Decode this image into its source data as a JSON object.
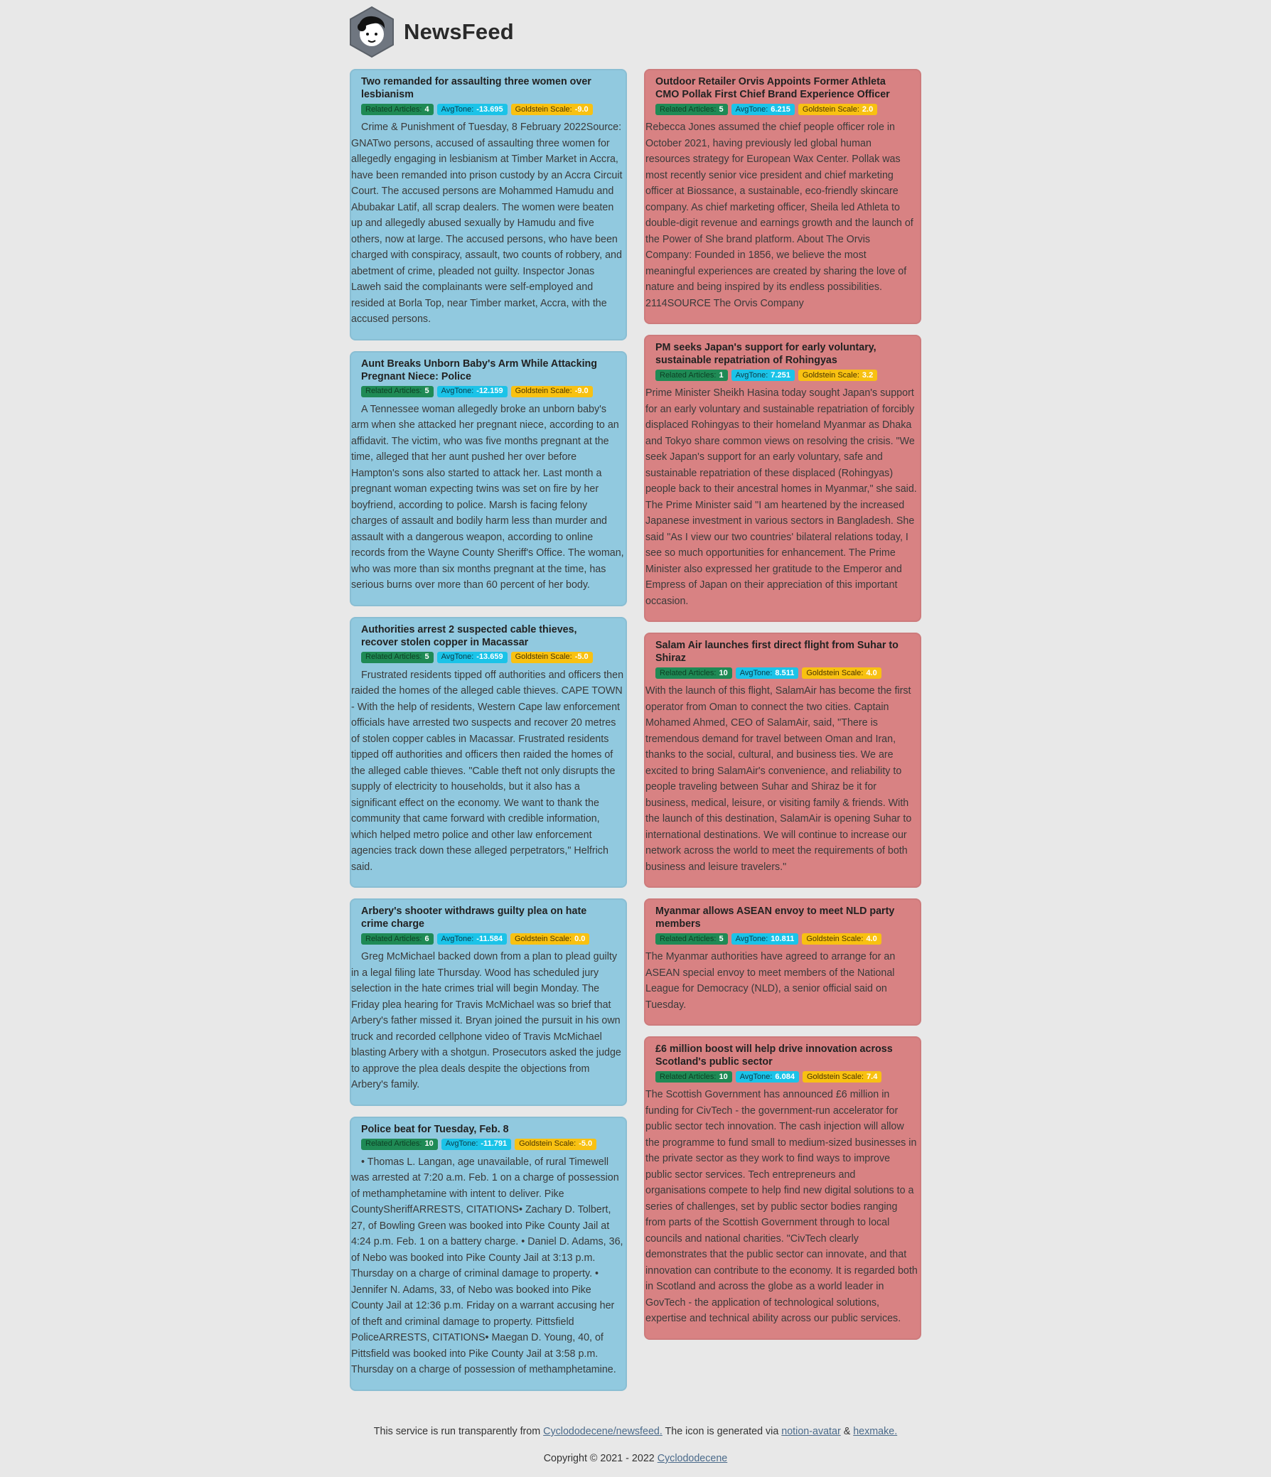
{
  "header": {
    "brand": "NewsFeed",
    "logo_icon": "avatar-hexagon-icon"
  },
  "badge_labels": {
    "related": "Related Articles:",
    "tone": "AvgTone:",
    "goldstein": "Goldstein Scale:"
  },
  "left_cards": [
    {
      "title": "Two remanded for assaulting three women over lesbianism",
      "related": "4",
      "tone": "-13.695",
      "goldstein": "-9.0",
      "body": "Crime & Punishment of Tuesday, 8 February 2022Source: GNATwo persons, accused of assaulting three women for allegedly engaging in lesbianism at Timber Market in Accra, have been remanded into prison custody by an Accra Circuit Court. The accused persons are Mohammed Hamudu and Abubakar Latif, all scrap dealers. The women were beaten up and allegedly abused sexually by Hamudu and five others, now at large. The accused persons, who have been charged with conspiracy, assault, two counts of robbery, and abetment of crime, pleaded not guilty. Inspector Jonas Laweh said the complainants were self-employed and resided at Borla Top, near Timber market, Accra, with the accused persons."
    },
    {
      "title": "Aunt Breaks Unborn Baby's Arm While Attacking Pregnant Niece: Police",
      "related": "5",
      "tone": "-12.159",
      "goldstein": "-9.0",
      "body": "A Tennessee woman allegedly broke an unborn baby's arm when she attacked her pregnant niece, according to an affidavit. The victim, who was five months pregnant at the time, alleged that her aunt pushed her over before Hampton's sons also started to attack her. Last month a pregnant woman expecting twins was set on fire by her boyfriend, according to police. Marsh is facing felony charges of assault and bodily harm less than murder and assault with a dangerous weapon, according to online records from the Wayne County Sheriff's Office. The woman, who was more than six months pregnant at the time, has serious burns over more than 60 percent of her body."
    },
    {
      "title": "Authorities arrest 2 suspected cable thieves, recover stolen copper in Macassar",
      "related": "5",
      "tone": "-13.659",
      "goldstein": "-5.0",
      "body": "Frustrated residents tipped off authorities and officers then raided the homes of the alleged cable thieves. CAPE TOWN - With the help of residents, Western Cape law enforcement officials have arrested two suspects and recover 20 metres of stolen copper cables in Macassar. Frustrated residents tipped off authorities and officers then raided the homes of the alleged cable thieves. \"Cable theft not only disrupts the supply of electricity to households, but it also has a significant effect on the economy. We want to thank the community that came forward with credible information, which helped metro police and other law enforcement agencies track down these alleged perpetrators,\" Helfrich said."
    },
    {
      "title": "Arbery's shooter withdraws guilty plea on hate crime charge",
      "related": "6",
      "tone": "-11.584",
      "goldstein": "0.0",
      "body": "Greg McMichael backed down from a plan to plead guilty in a legal filing late Thursday. Wood has scheduled jury selection in the hate crimes trial will begin Monday. The Friday plea hearing for Travis McMichael was so brief that Arbery's father missed it. Bryan joined the pursuit in his own truck and recorded cellphone video of Travis McMichael blasting Arbery with a shotgun. Prosecutors asked the judge to approve the plea deals despite the objections from Arbery's family."
    },
    {
      "title": "Police beat for Tuesday, Feb. 8",
      "related": "10",
      "tone": "-11.791",
      "goldstein": "-5.0",
      "body": "• Thomas L. Langan, age unavailable, of rural Timewell was arrested at 7:20 a.m. Feb. 1 on a charge of possession of methamphetamine with intent to deliver. Pike CountySheriffARRESTS, CITATIONS• Zachary D. Tolbert, 27, of Bowling Green was booked into Pike County Jail at 4:24 p.m. Feb. 1 on a battery charge. • Daniel D. Adams, 36, of Nebo was booked into Pike County Jail at 3:13 p.m. Thursday on a charge of criminal damage to property. • Jennifer N. Adams, 33, of Nebo was booked into Pike County Jail at 12:36 p.m. Friday on a warrant accusing her of theft and criminal damage to property. Pittsfield PoliceARRESTS, CITATIONS• Maegan D. Young, 40, of Pittsfield was booked into Pike County Jail at 3:58 p.m. Thursday on a charge of possession of methamphetamine."
    }
  ],
  "right_cards": [
    {
      "title": "Outdoor Retailer Orvis Appoints Former Athleta CMO Pollak First Chief Brand Experience Officer",
      "related": "5",
      "tone": "6.215",
      "goldstein": "2.0",
      "body": "Rebecca Jones assumed the chief people officer role in October 2021, having previously led global human resources strategy for European Wax Center. Pollak was most recently senior vice president and chief marketing officer at Biossance, a sustainable, eco-friendly skincare company. As chief marketing officer, Sheila led Athleta to double-digit revenue and earnings growth and the launch of the Power of She brand platform. About The Orvis Company: Founded in 1856, we believe the most meaningful experiences are created by sharing the love of nature and being inspired by its endless possibilities. 2114SOURCE The Orvis Company"
    },
    {
      "title": "PM seeks Japan's support for early voluntary, sustainable repatriation of Rohingyas",
      "related": "1",
      "tone": "7.251",
      "goldstein": "3.2",
      "body": "Prime Minister Sheikh Hasina today sought Japan's support for an early voluntary and sustainable repatriation of forcibly displaced Rohingyas to their homeland Myanmar as Dhaka and Tokyo share common views on resolving the crisis. \"We seek Japan's support for an early voluntary, safe and sustainable repatriation of these displaced (Rohingyas) people back to their ancestral homes in Myanmar,\" she said. The Prime Minister said \"I am heartened by the increased Japanese investment in various sectors in Bangladesh. She said \"As I view our two countries' bilateral relations today, I see so much opportunities for enhancement. The Prime Minister also expressed her gratitude to the Emperor and Empress of Japan on their appreciation of this important occasion."
    },
    {
      "title": "Salam Air launches first direct flight from Suhar to Shiraz",
      "related": "10",
      "tone": "8.511",
      "goldstein": "4.0",
      "body": "With the launch of this flight, SalamAir has become the first operator from Oman to connect the two cities. Captain Mohamed Ahmed, CEO of SalamAir, said, \"There is tremendous demand for travel between Oman and Iran, thanks to the social, cultural, and business ties. We are excited to bring SalamAir's convenience, and reliability to people traveling between Suhar and Shiraz be it for business, medical, leisure, or visiting family & friends. With the launch of this destination, SalamAir is opening Suhar to international destinations. We will continue to increase our network across the world to meet the requirements of both business and leisure travelers.\""
    },
    {
      "title": "Myanmar allows ASEAN envoy to meet NLD party members",
      "related": "5",
      "tone": "10.811",
      "goldstein": "4.0",
      "body": "The Myanmar authorities have agreed to arrange for an ASEAN special envoy to meet members of the National League for Democracy (NLD), a senior official said on Tuesday."
    },
    {
      "title": "£6 million boost will help drive innovation across Scotland's public sector",
      "related": "10",
      "tone": "6.084",
      "goldstein": "7.4",
      "body": "The Scottish Government has announced £6 million in funding for CivTech - the government-run accelerator for public sector tech innovation. The cash injection will allow the programme to fund small to medium-sized businesses in the private sector as they work to find ways to improve public sector services. Tech entrepreneurs and organisations compete to help find new digital solutions to a series of challenges, set by public sector bodies ranging from parts of the Scottish Government through to local councils and national charities. \"CivTech clearly demonstrates that the public sector can innovate, and that innovation can contribute to the economy. It is regarded both in Scotland and across the globe as a world leader in GovTech - the application of technological solutions, expertise and technical ability across our public services."
    }
  ],
  "footer": {
    "line1_prefix": "This service is run transparently from ",
    "repo_link": "Cyclododecene/newsfeed.",
    "line1_mid": " The icon is generated via ",
    "avatar_link": "notion-avatar",
    "amp": " & ",
    "hexmake_link": "hexmake.",
    "copyright": "Copyright © 2021 - 2022 ",
    "author_link": "Cyclododecene"
  },
  "colors": {
    "positive": "#d88283",
    "negative": "#91c9df",
    "background": "#e8e8e8"
  }
}
